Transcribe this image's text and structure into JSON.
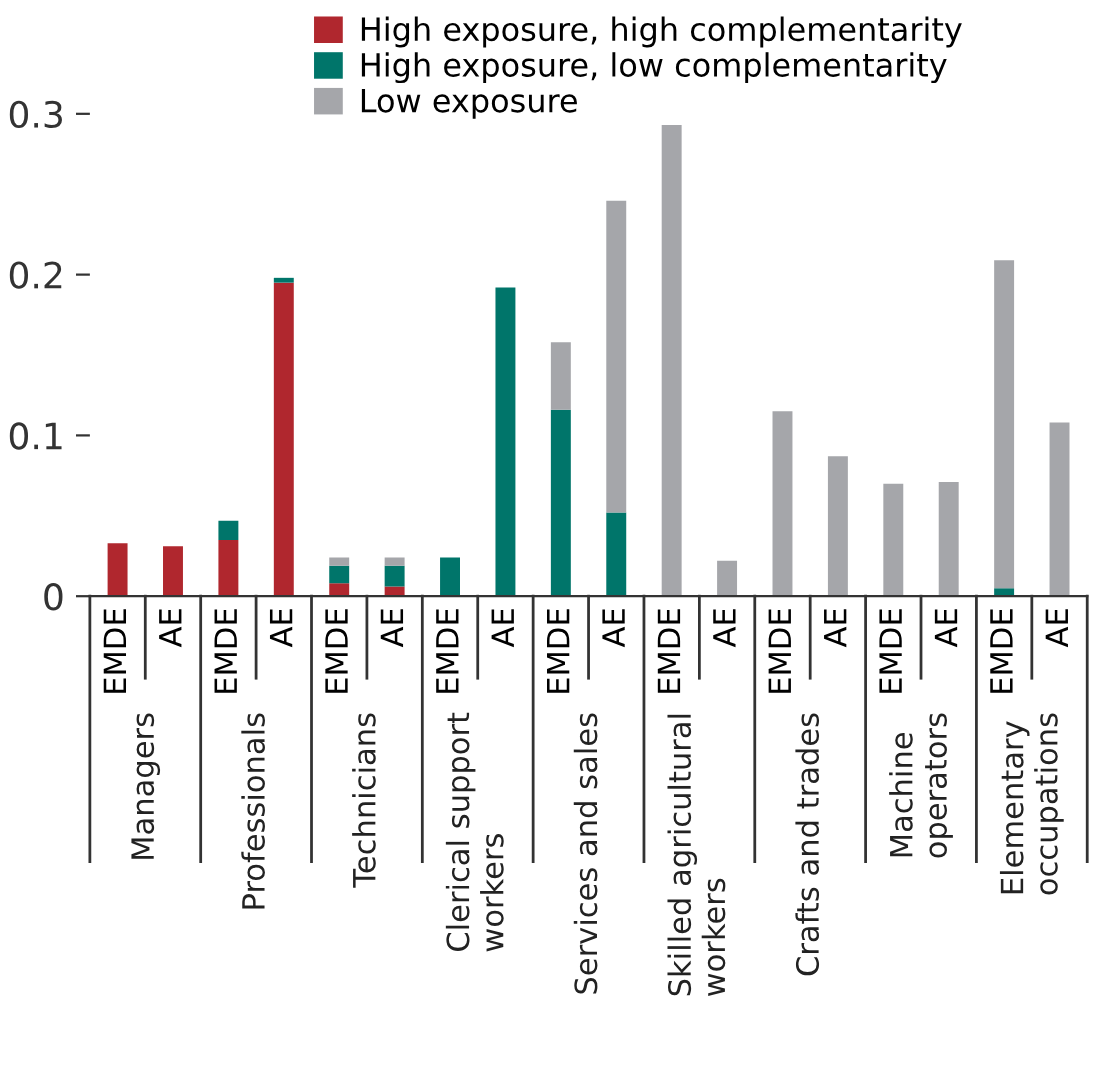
{
  "chart_data": {
    "type": "bar",
    "stacked": true,
    "categories": [
      "EMDE",
      "AE",
      "EMDE",
      "AE",
      "EMDE",
      "AE",
      "EMDE",
      "AE",
      "EMDE",
      "AE",
      "EMDE",
      "AE",
      "EMDE",
      "AE",
      "EMDE",
      "AE",
      "EMDE",
      "AE"
    ],
    "annotations": [
      "Managers",
      "Professionals",
      "Technicians",
      "Clerical support\nworkers",
      "Services and sales",
      "Skilled agricultural\nworkers",
      "Crafts and trades",
      "Machine\noperators",
      "Elementary\noccupations"
    ],
    "series": [
      {
        "name": "High exposure, high complementarity",
        "color": "#b0272e",
        "values": [
          0.033,
          0.031,
          0.035,
          0.195,
          0.008,
          0.006,
          0,
          0,
          0,
          0,
          0,
          0,
          0,
          0,
          0,
          0,
          0,
          0
        ]
      },
      {
        "name": "High exposure, low complementarity",
        "color": "#00756a",
        "values": [
          0,
          0,
          0.012,
          0.003,
          0.011,
          0.013,
          0.024,
          0.192,
          0.116,
          0.052,
          0,
          0,
          0,
          0,
          0,
          0,
          0.005,
          0
        ]
      },
      {
        "name": "Low exposure",
        "color": "#a5a6aa",
        "values": [
          0,
          0,
          0,
          0,
          0.005,
          0.005,
          0,
          0,
          0.042,
          0.194,
          0.293,
          0.022,
          0.115,
          0.087,
          0.07,
          0.071,
          0.204,
          0.108
        ]
      }
    ],
    "ylim": [
      0,
      0.3
    ],
    "yticks": [
      0,
      {
        "value": 0.1,
        "label": "0.1"
      },
      {
        "value": 0.2,
        "label": "0.2"
      },
      {
        "value": 0.3,
        "label": "0.3"
      }
    ],
    "grid": false,
    "legend": "top"
  }
}
